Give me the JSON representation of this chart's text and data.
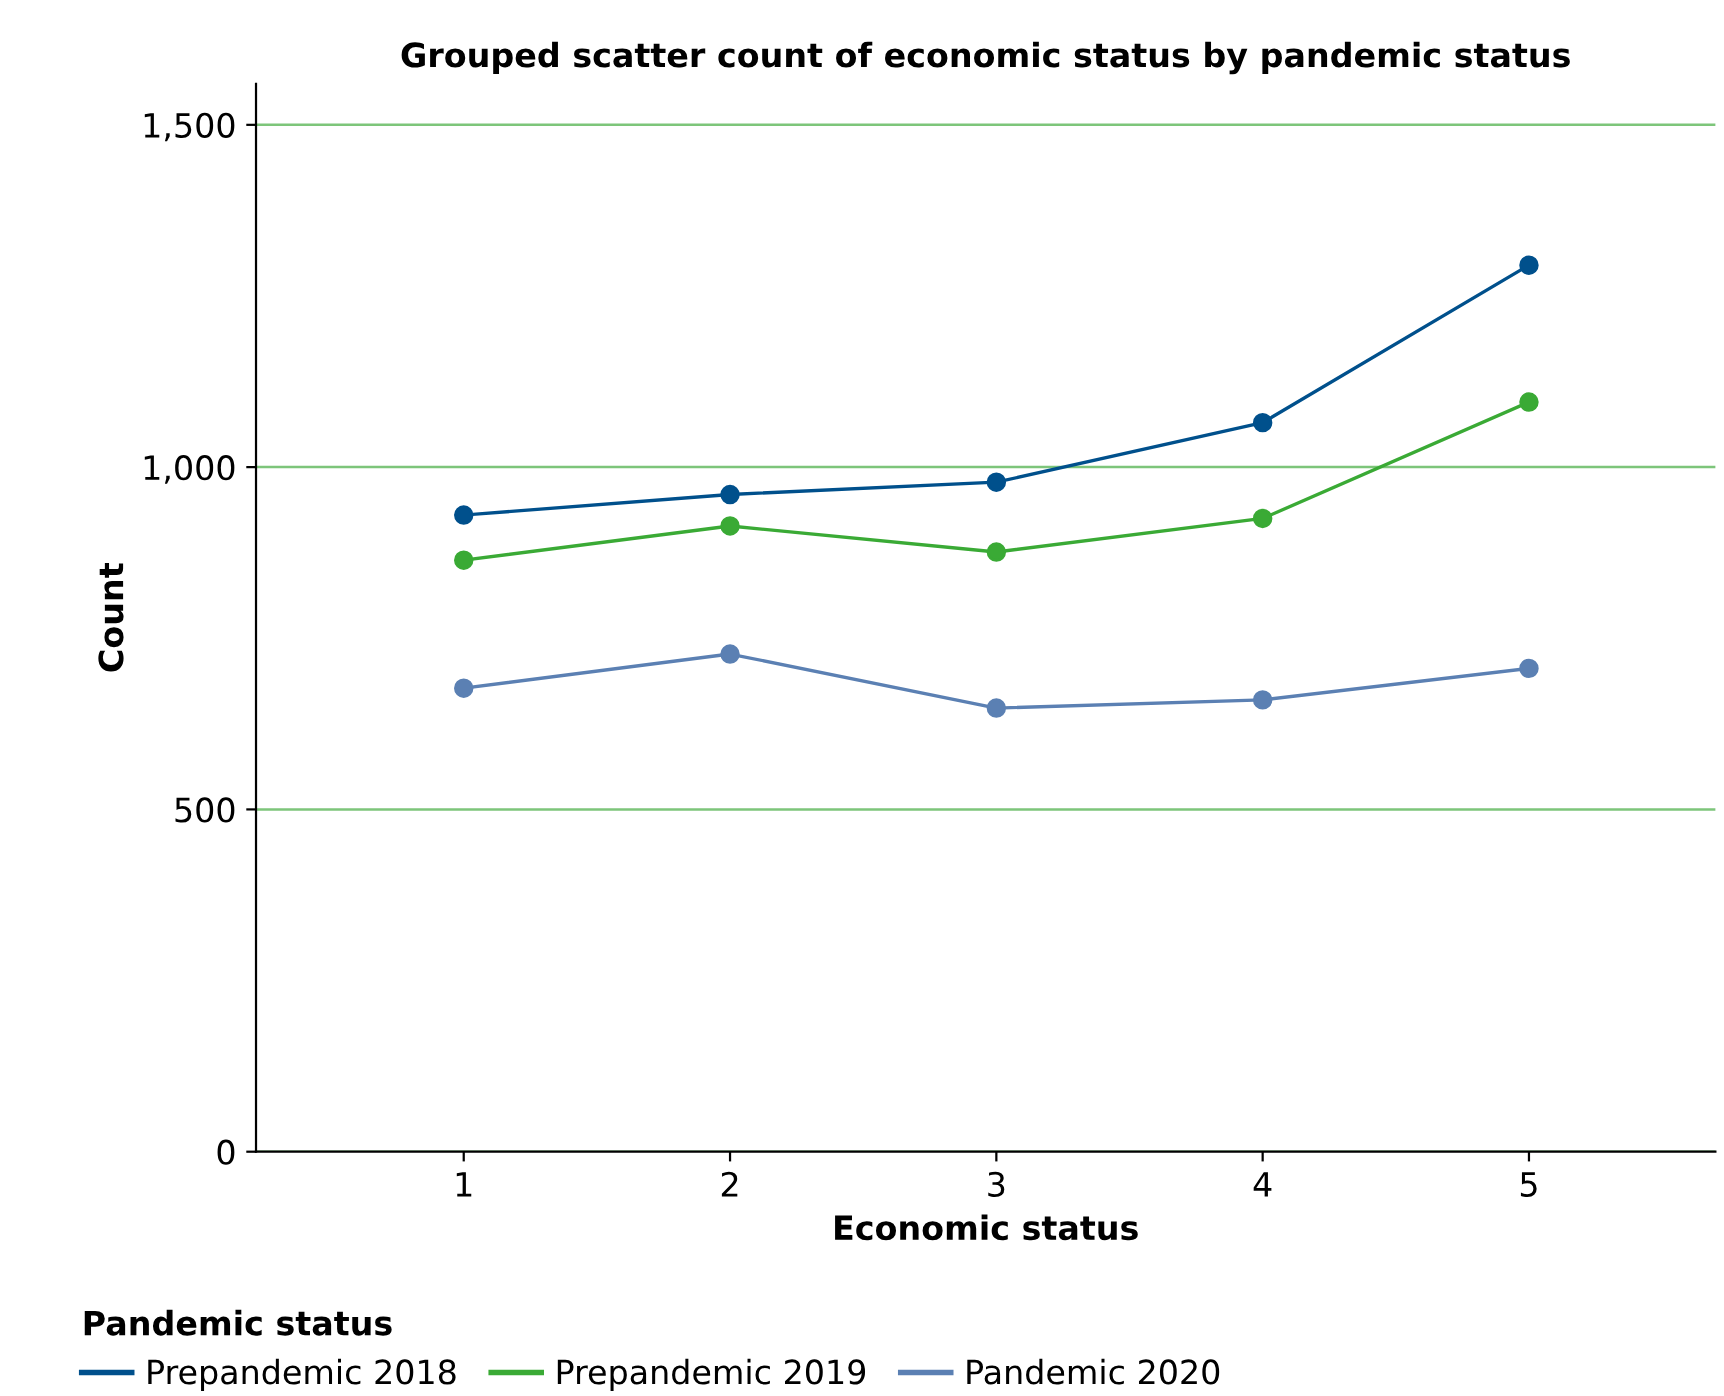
{
  "chart_data": {
    "type": "line",
    "title": "Grouped scatter count of economic status by pandemic status",
    "xlabel": "Economic status",
    "ylabel": "Count",
    "legend_title": "Pandemic status",
    "x": [
      1,
      2,
      3,
      4,
      5
    ],
    "series": [
      {
        "name": "Prepandemic 2018",
        "color": "#00508c",
        "values": [
          930,
          960,
          978,
          1065,
          1295
        ]
      },
      {
        "name": "Prepandemic 2019",
        "color": "#3aaa35",
        "values": [
          864,
          914,
          876,
          925,
          1095
        ]
      },
      {
        "name": "Pandemic 2020",
        "color": "#5b80b3",
        "values": [
          677,
          727,
          648,
          660,
          706
        ]
      }
    ],
    "xlim": [
      0.22,
      5.7
    ],
    "xticks": [
      1,
      2,
      3,
      4,
      5
    ],
    "ylim": [
      0,
      1560
    ],
    "yticks": [
      0,
      500,
      {
        "value": 1000,
        "label": "1,000"
      },
      {
        "value": 1500,
        "label": "1,500"
      }
    ],
    "grid": "y",
    "legend": "bottom",
    "marker": "circle",
    "line_style": "solid"
  }
}
